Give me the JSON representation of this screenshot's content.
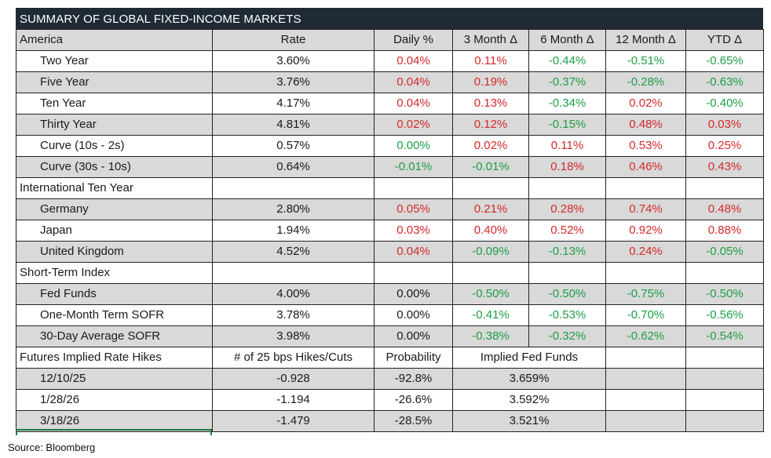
{
  "title": "SUMMARY OF GLOBAL FIXED-INCOME MARKETS",
  "columns": [
    "America",
    "Rate",
    "Daily %",
    "3 Month Δ",
    "6 Month Δ",
    "12 Month Δ",
    "YTD Δ"
  ],
  "america": [
    {
      "name": "Two Year",
      "rate": "3.60%",
      "vals": [
        "0.04%",
        "0.11%",
        "-0.44%",
        "-0.51%",
        "-0.65%"
      ]
    },
    {
      "name": "Five Year",
      "rate": "3.76%",
      "vals": [
        "0.04%",
        "0.19%",
        "-0.37%",
        "-0.28%",
        "-0.63%"
      ]
    },
    {
      "name": "Ten Year",
      "rate": "4.17%",
      "vals": [
        "0.04%",
        "0.13%",
        "-0.34%",
        "0.02%",
        "-0.40%"
      ]
    },
    {
      "name": "Thirty Year",
      "rate": "4.81%",
      "vals": [
        "0.02%",
        "0.12%",
        "-0.15%",
        "0.48%",
        "0.03%"
      ]
    },
    {
      "name": "Curve (10s - 2s)",
      "rate": "0.57%",
      "vals": [
        "0.00%",
        "0.02%",
        "0.11%",
        "0.53%",
        "0.25%"
      ]
    },
    {
      "name": "Curve (30s - 10s)",
      "rate": "0.64%",
      "vals": [
        "-0.01%",
        "-0.01%",
        "0.18%",
        "0.46%",
        "0.43%"
      ]
    }
  ],
  "intl_header": "International Ten Year",
  "international": [
    {
      "name": "Germany",
      "rate": "2.80%",
      "vals": [
        "0.05%",
        "0.21%",
        "0.28%",
        "0.74%",
        "0.48%"
      ]
    },
    {
      "name": "Japan",
      "rate": "1.94%",
      "vals": [
        "0.03%",
        "0.40%",
        "0.52%",
        "0.92%",
        "0.88%"
      ]
    },
    {
      "name": "United Kingdom",
      "rate": "4.52%",
      "vals": [
        "0.04%",
        "-0.09%",
        "-0.13%",
        "0.24%",
        "-0.05%"
      ]
    }
  ],
  "short_header": "Short-Term Index",
  "short_term": [
    {
      "name": "Fed Funds",
      "rate": "4.00%",
      "vals": [
        "0.00%",
        "-0.50%",
        "-0.50%",
        "-0.75%",
        "-0.50%"
      ]
    },
    {
      "name": "One-Month Term SOFR",
      "rate": "3.78%",
      "vals": [
        "0.00%",
        "-0.41%",
        "-0.53%",
        "-0.70%",
        "-0.56%"
      ]
    },
    {
      "name": "30-Day Average SOFR",
      "rate": "3.98%",
      "vals": [
        "0.00%",
        "-0.38%",
        "-0.32%",
        "-0.62%",
        "-0.54%"
      ]
    }
  ],
  "futures_header": {
    "label": "Futures Implied Rate Hikes",
    "hikes": "# of 25 bps Hikes/Cuts",
    "probability": "Probability",
    "implied": "Implied Fed Funds"
  },
  "futures": [
    {
      "date": "12/10/25",
      "hikes": "-0.928",
      "prob": "-92.8%",
      "implied": "3.659%"
    },
    {
      "date": "1/28/26",
      "hikes": "-1.194",
      "prob": "-26.6%",
      "implied": "3.592%"
    },
    {
      "date": "3/18/26",
      "hikes": "-1.479",
      "prob": "-28.5%",
      "implied": "3.521%"
    }
  ],
  "source": "Source: Bloomberg",
  "colors": {
    "header_bg": "#1f2a36",
    "shade": "#d9d9d9",
    "positive": "#d42a2a",
    "negative": "#1e9e45"
  }
}
